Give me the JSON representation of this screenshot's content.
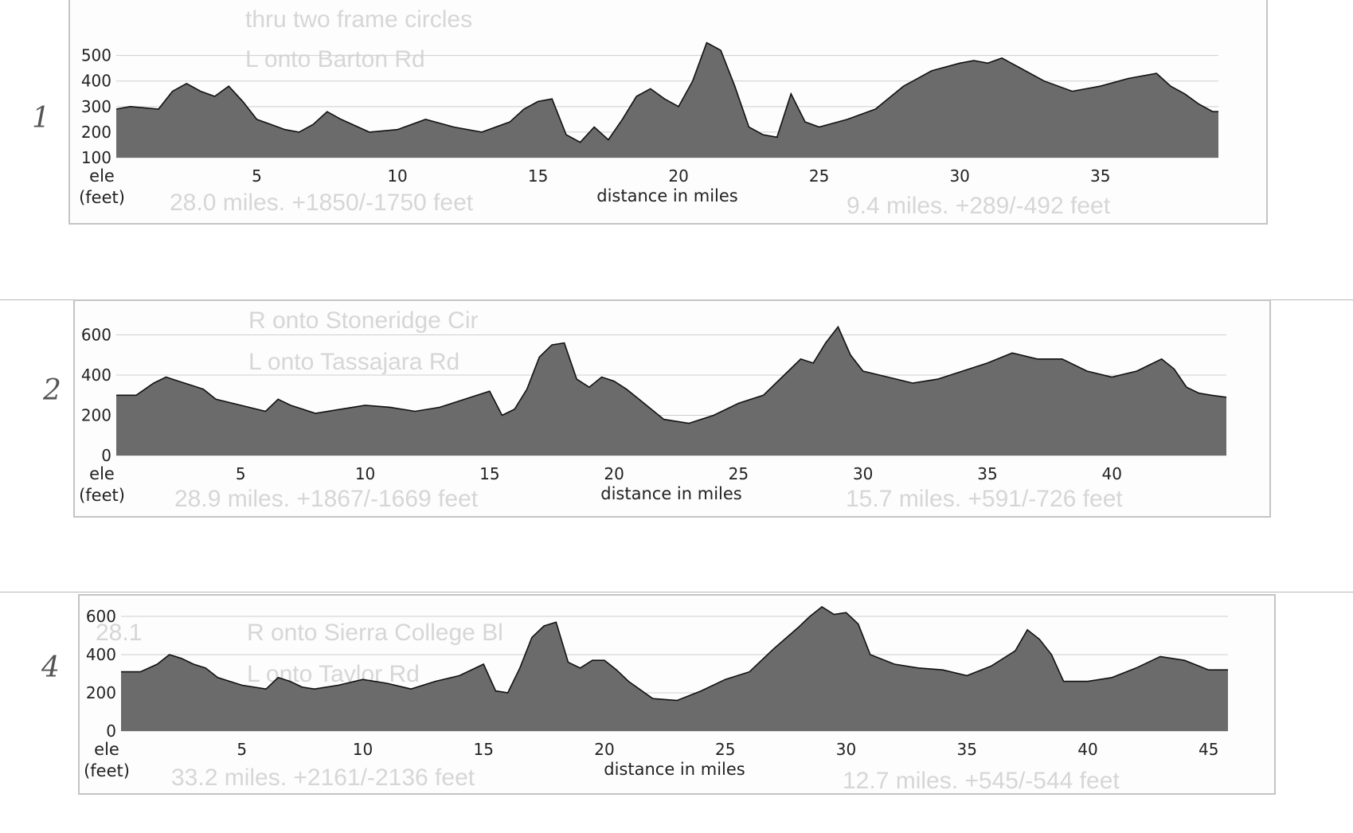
{
  "page": {
    "handwritten_labels": [
      "1",
      "2",
      "4"
    ],
    "ghost_text": [
      [
        "thru two frame circles",
        "L onto Barton Rd",
        "28.0 miles. +1850/-1750 feet",
        "9.4 miles. +289/-492 feet"
      ],
      [
        "R onto Stoneridge Cir",
        "L onto Tassajara Rd",
        "28.9 miles. +1867/-1669 feet",
        "15.7 miles. +591/-726 feet"
      ],
      [
        "28.1",
        "R onto Sierra College Bl",
        "L onto Taylor Rd",
        "33.2 miles. +2161/-2136 feet",
        "12.7 miles. +545/-544 feet"
      ]
    ]
  },
  "colors": {
    "fill": "#6b6b6b",
    "stroke": "#111111",
    "grid": "#cfcfcf",
    "frame": "#c4c4c4"
  },
  "chart_data": [
    {
      "type": "area",
      "xlabel": "distance in miles",
      "ylabel": [
        "ele",
        "(feet)"
      ],
      "xlim": [
        0,
        39.2
      ],
      "ylim": [
        100,
        555
      ],
      "xticks": [
        5,
        10,
        15,
        20,
        25,
        30,
        35
      ],
      "yticks": [
        100,
        200,
        300,
        400,
        500
      ],
      "grid": "horizontal",
      "x": [
        0,
        0.5,
        1.5,
        2,
        2.5,
        3,
        3.5,
        4,
        4.5,
        5,
        5.5,
        6,
        6.5,
        7,
        7.5,
        8,
        9,
        10,
        11,
        12,
        13,
        14,
        14.5,
        15,
        15.5,
        16,
        16.5,
        17,
        17.5,
        18,
        18.5,
        19,
        19.5,
        20,
        20.5,
        21,
        21.5,
        22,
        22.5,
        23,
        23.5,
        24,
        24.5,
        25,
        26,
        27,
        28,
        29,
        30,
        30.5,
        31,
        31.5,
        32,
        33,
        34,
        35,
        36,
        37,
        37.5,
        38,
        38.5,
        39,
        39.2
      ],
      "y": [
        290,
        300,
        290,
        360,
        390,
        360,
        340,
        380,
        320,
        250,
        230,
        210,
        200,
        230,
        280,
        250,
        200,
        210,
        250,
        220,
        200,
        240,
        290,
        320,
        330,
        190,
        160,
        220,
        170,
        250,
        340,
        370,
        330,
        300,
        400,
        550,
        520,
        380,
        220,
        190,
        180,
        350,
        240,
        220,
        250,
        290,
        380,
        440,
        470,
        480,
        470,
        490,
        460,
        400,
        360,
        380,
        410,
        430,
        380,
        350,
        310,
        280,
        280
      ]
    },
    {
      "type": "area",
      "xlabel": "distance in miles",
      "ylabel": [
        "ele",
        "(feet)"
      ],
      "xlim": [
        0,
        44.6
      ],
      "ylim": [
        0,
        610
      ],
      "xticks": [
        5,
        10,
        15,
        20,
        25,
        30,
        35,
        40
      ],
      "yticks": [
        0,
        200,
        400,
        600
      ],
      "grid": "horizontal",
      "x": [
        0,
        0.8,
        1.5,
        2,
        2.5,
        3,
        3.5,
        4,
        5,
        6,
        6.5,
        7,
        7.5,
        8,
        9,
        10,
        11,
        12,
        13,
        14,
        15,
        15.5,
        16,
        16.5,
        17,
        17.5,
        18,
        18.5,
        19,
        19.5,
        20,
        20.5,
        21,
        22,
        23,
        24,
        25,
        26,
        27,
        27.5,
        28,
        28.5,
        29,
        29.5,
        30,
        31,
        32,
        33,
        34,
        35,
        36,
        37,
        38,
        39,
        40,
        41,
        41.5,
        42,
        42.5,
        43,
        43.5,
        44,
        44.6
      ],
      "y": [
        300,
        300,
        360,
        390,
        370,
        350,
        330,
        280,
        250,
        220,
        280,
        250,
        230,
        210,
        230,
        250,
        240,
        220,
        240,
        280,
        320,
        200,
        230,
        330,
        490,
        550,
        560,
        380,
        340,
        390,
        370,
        330,
        280,
        180,
        160,
        200,
        260,
        300,
        420,
        480,
        460,
        560,
        640,
        500,
        420,
        390,
        360,
        380,
        420,
        460,
        510,
        480,
        480,
        420,
        390,
        420,
        450,
        480,
        430,
        340,
        310,
        300,
        290
      ]
    },
    {
      "type": "area",
      "xlabel": "distance in miles",
      "ylabel": [
        "ele",
        "(feet)"
      ],
      "xlim": [
        0,
        45.8
      ],
      "ylim": [
        0,
        650
      ],
      "xticks": [
        5,
        10,
        15,
        20,
        25,
        30,
        35,
        40,
        45
      ],
      "yticks": [
        0,
        200,
        400,
        600
      ],
      "grid": "horizontal",
      "x": [
        0,
        0.8,
        1.5,
        2,
        2.5,
        3,
        3.5,
        4,
        5,
        6,
        6.5,
        7,
        7.5,
        8,
        9,
        10,
        11,
        12,
        13,
        14,
        15,
        15.5,
        16,
        16.5,
        17,
        17.5,
        18,
        18.5,
        19,
        19.5,
        20,
        20.5,
        21,
        22,
        23,
        24,
        25,
        26,
        27,
        28,
        28.5,
        29,
        29.5,
        30,
        30.5,
        31,
        32,
        33,
        34,
        35,
        36,
        37,
        37.5,
        38,
        38.5,
        39,
        40,
        41,
        42,
        43,
        44,
        45,
        45.8
      ],
      "y": [
        310,
        310,
        350,
        400,
        380,
        350,
        330,
        280,
        240,
        220,
        280,
        260,
        230,
        220,
        240,
        270,
        250,
        220,
        260,
        290,
        350,
        210,
        200,
        330,
        490,
        550,
        570,
        360,
        330,
        370,
        370,
        320,
        260,
        170,
        160,
        210,
        270,
        310,
        430,
        540,
        600,
        650,
        610,
        620,
        560,
        400,
        350,
        330,
        320,
        290,
        340,
        420,
        530,
        480,
        400,
        260,
        260,
        280,
        330,
        390,
        370,
        320,
        320
      ]
    }
  ]
}
